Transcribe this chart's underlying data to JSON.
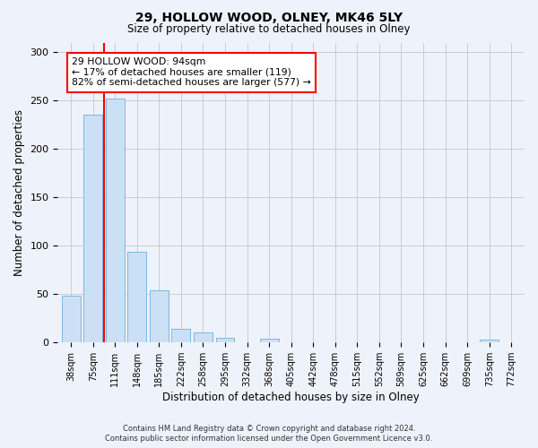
{
  "title": "29, HOLLOW WOOD, OLNEY, MK46 5LY",
  "subtitle": "Size of property relative to detached houses in Olney",
  "xlabel": "Distribution of detached houses by size in Olney",
  "ylabel": "Number of detached properties",
  "footer_line1": "Contains HM Land Registry data © Crown copyright and database right 2024.",
  "footer_line2": "Contains public sector information licensed under the Open Government Licence v3.0.",
  "bar_labels": [
    "38sqm",
    "75sqm",
    "111sqm",
    "148sqm",
    "185sqm",
    "222sqm",
    "258sqm",
    "295sqm",
    "332sqm",
    "368sqm",
    "405sqm",
    "442sqm",
    "478sqm",
    "515sqm",
    "552sqm",
    "589sqm",
    "625sqm",
    "662sqm",
    "699sqm",
    "735sqm",
    "772sqm"
  ],
  "bar_values": [
    48,
    235,
    252,
    94,
    54,
    14,
    10,
    5,
    0,
    4,
    0,
    0,
    0,
    0,
    0,
    0,
    0,
    0,
    0,
    3,
    0
  ],
  "bar_color": "#cce0f5",
  "bar_edge_color": "#7ab8e0",
  "annotation_text": "29 HOLLOW WOOD: 94sqm\n← 17% of detached houses are smaller (119)\n82% of semi-detached houses are larger (577) →",
  "annotation_box_color": "white",
  "annotation_box_edge_color": "red",
  "vline_color": "red",
  "ylim": [
    0,
    310
  ],
  "yticks": [
    0,
    50,
    100,
    150,
    200,
    250,
    300
  ],
  "grid_color": "#cccccc",
  "bg_color": "#eef2fa"
}
